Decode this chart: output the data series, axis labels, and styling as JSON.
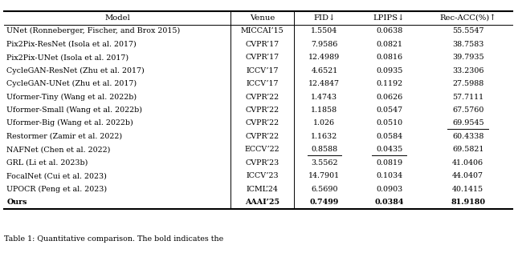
{
  "headers": [
    "Model",
    "Venue",
    "FID↓",
    "LPIPS↓",
    "Rec-ACC(%)↑"
  ],
  "rows": [
    [
      "UNet (Ronneberger, Fischer, and Brox 2015)",
      "MICCAI’15",
      "1.5504",
      "0.0638",
      "55.5547"
    ],
    [
      "Pix2Pix-ResNet (Isola et al. 2017)",
      "CVPR’17",
      "7.9586",
      "0.0821",
      "38.7583"
    ],
    [
      "Pix2Pix-UNet (Isola et al. 2017)",
      "CVPR’17",
      "12.4989",
      "0.0816",
      "39.7935"
    ],
    [
      "CycleGAN-ResNet (Zhu et al. 2017)",
      "ICCV’17",
      "4.6521",
      "0.0935",
      "33.2306"
    ],
    [
      "CycleGAN-UNet (Zhu et al. 2017)",
      "ICCV’17",
      "12.4847",
      "0.1192",
      "27.5988"
    ],
    [
      "Uformer-Tiny (Wang et al. 2022b)",
      "CVPR’22",
      "1.4743",
      "0.0626",
      "57.7111"
    ],
    [
      "Uformer-Small (Wang et al. 2022b)",
      "CVPR’22",
      "1.1858",
      "0.0547",
      "67.5760"
    ],
    [
      "Uformer-Big (Wang et al. 2022b)",
      "CVPR’22",
      "1.026",
      "0.0510",
      "69.9545"
    ],
    [
      "Restormer (Zamir et al. 2022)",
      "CVPR’22",
      "1.1632",
      "0.0584",
      "60.4338"
    ],
    [
      "NAFNet (Chen et al. 2022)",
      "ECCV’22",
      "0.8588",
      "0.0435",
      "69.5821"
    ],
    [
      "GRL (Li et al. 2023b)",
      "CVPR’23",
      "3.5562",
      "0.0819",
      "41.0406"
    ],
    [
      "FocalNet (Cui et al. 2023)",
      "ICCV’23",
      "14.7901",
      "0.1034",
      "44.0407"
    ],
    [
      "UPOCR (Peng et al. 2023)",
      "ICML’24",
      "6.5690",
      "0.0903",
      "40.1415"
    ],
    [
      "Ours",
      "AAAI’25",
      "0.7499",
      "0.0384",
      "81.9180"
    ]
  ],
  "underline_cells": [
    [
      9,
      2
    ],
    [
      9,
      3
    ],
    [
      7,
      4
    ]
  ],
  "bold_rows": [
    13
  ],
  "background_color": "#ffffff",
  "text_color": "#000000",
  "font_size": 6.8,
  "header_font_size": 7.2,
  "fig_width": 6.4,
  "fig_height": 3.16,
  "caption": "Table 1: Quantitative comparison. The bold indicates the"
}
